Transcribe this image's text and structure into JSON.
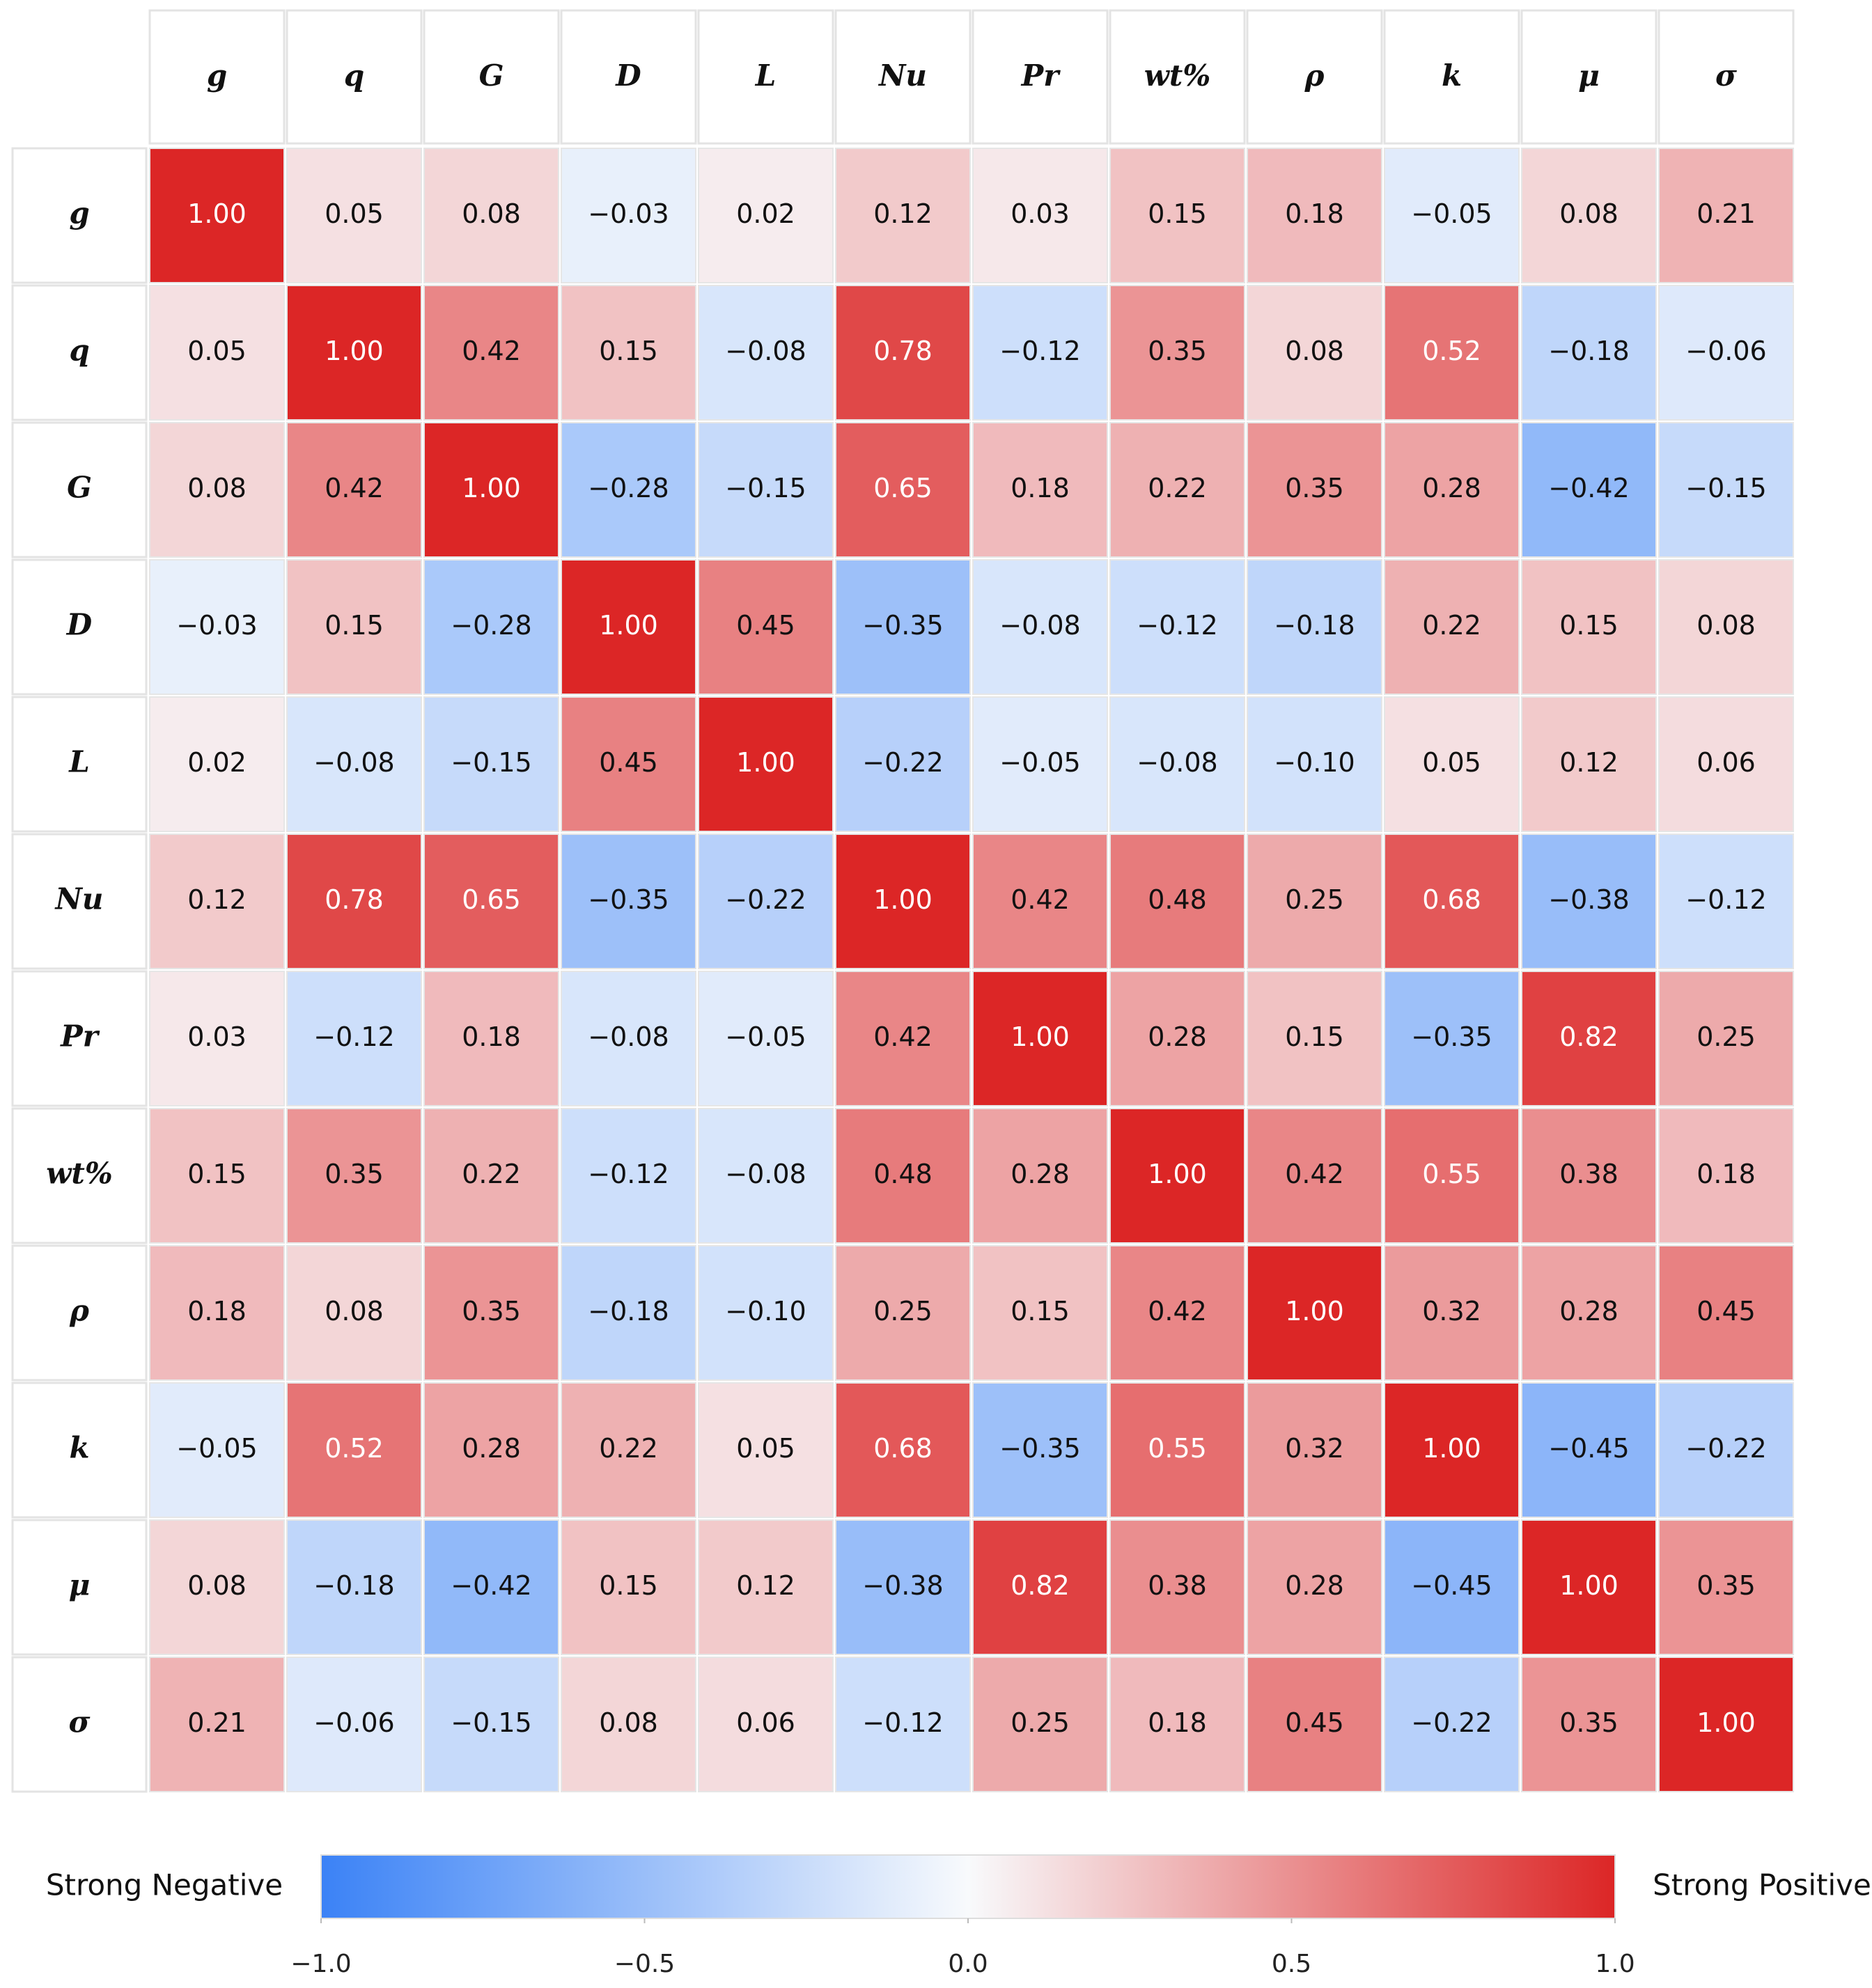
{
  "chart_data": {
    "type": "heatmap",
    "categories": [
      "g",
      "q",
      "G",
      "D",
      "L",
      "Nu",
      "Pr",
      "wt%",
      "ρ",
      "k",
      "μ",
      "σ"
    ],
    "values": [
      [
        1.0,
        0.05,
        0.08,
        -0.03,
        0.02,
        0.12,
        0.03,
        0.15,
        0.18,
        -0.05,
        0.08,
        0.21
      ],
      [
        0.05,
        1.0,
        0.42,
        0.15,
        -0.08,
        0.78,
        -0.12,
        0.35,
        0.08,
        0.52,
        -0.18,
        -0.06
      ],
      [
        0.08,
        0.42,
        1.0,
        -0.28,
        -0.15,
        0.65,
        0.18,
        0.22,
        0.35,
        0.28,
        -0.42,
        -0.15
      ],
      [
        -0.03,
        0.15,
        -0.28,
        1.0,
        0.45,
        -0.35,
        -0.08,
        -0.12,
        -0.18,
        0.22,
        0.15,
        0.08
      ],
      [
        0.02,
        -0.08,
        -0.15,
        0.45,
        1.0,
        -0.22,
        -0.05,
        -0.08,
        -0.1,
        0.05,
        0.12,
        0.06
      ],
      [
        0.12,
        0.78,
        0.65,
        -0.35,
        -0.22,
        1.0,
        0.42,
        0.48,
        0.25,
        0.68,
        -0.38,
        -0.12
      ],
      [
        0.03,
        -0.12,
        0.18,
        -0.08,
        -0.05,
        0.42,
        1.0,
        0.28,
        0.15,
        -0.35,
        0.82,
        0.25
      ],
      [
        0.15,
        0.35,
        0.22,
        -0.12,
        -0.08,
        0.48,
        0.28,
        1.0,
        0.42,
        0.55,
        0.38,
        0.18
      ],
      [
        0.18,
        0.08,
        0.35,
        -0.18,
        -0.1,
        0.25,
        0.15,
        0.42,
        1.0,
        0.32,
        0.28,
        0.45
      ],
      [
        -0.05,
        0.52,
        0.28,
        0.22,
        0.05,
        0.68,
        -0.35,
        0.55,
        0.32,
        1.0,
        -0.45,
        -0.22
      ],
      [
        0.08,
        -0.18,
        -0.42,
        0.15,
        0.12,
        -0.38,
        0.82,
        0.38,
        0.28,
        -0.45,
        1.0,
        0.35
      ],
      [
        0.21,
        -0.06,
        -0.15,
        0.08,
        0.06,
        -0.12,
        0.25,
        0.18,
        0.45,
        -0.22,
        0.35,
        1.0
      ]
    ],
    "value_labels": [
      [
        "1.00",
        "0.05",
        "0.08",
        "−0.03",
        "0.02",
        "0.12",
        "0.03",
        "0.15",
        "0.18",
        "−0.05",
        "0.08",
        "0.21"
      ],
      [
        "0.05",
        "1.00",
        "0.42",
        "0.15",
        "−0.08",
        "0.78",
        "−0.12",
        "0.35",
        "0.08",
        "0.52",
        "−0.18",
        "−0.06"
      ],
      [
        "0.08",
        "0.42",
        "1.00",
        "−0.28",
        "−0.15",
        "0.65",
        "0.18",
        "0.22",
        "0.35",
        "0.28",
        "−0.42",
        "−0.15"
      ],
      [
        "−0.03",
        "0.15",
        "−0.28",
        "1.00",
        "0.45",
        "−0.35",
        "−0.08",
        "−0.12",
        "−0.18",
        "0.22",
        "0.15",
        "0.08"
      ],
      [
        "0.02",
        "−0.08",
        "−0.15",
        "0.45",
        "1.00",
        "−0.22",
        "−0.05",
        "−0.08",
        "−0.10",
        "0.05",
        "0.12",
        "0.06"
      ],
      [
        "0.12",
        "0.78",
        "0.65",
        "−0.35",
        "−0.22",
        "1.00",
        "0.42",
        "0.48",
        "0.25",
        "0.68",
        "−0.38",
        "−0.12"
      ],
      [
        "0.03",
        "−0.12",
        "0.18",
        "−0.08",
        "−0.05",
        "0.42",
        "1.00",
        "0.28",
        "0.15",
        "−0.35",
        "0.82",
        "0.25"
      ],
      [
        "0.15",
        "0.35",
        "0.22",
        "−0.12",
        "−0.08",
        "0.48",
        "0.28",
        "1.00",
        "0.42",
        "0.55",
        "0.38",
        "0.18"
      ],
      [
        "0.18",
        "0.08",
        "0.35",
        "−0.18",
        "−0.10",
        "0.25",
        "0.15",
        "0.42",
        "1.00",
        "0.32",
        "0.28",
        "0.45"
      ],
      [
        "−0.05",
        "0.52",
        "0.28",
        "0.22",
        "0.05",
        "0.68",
        "−0.35",
        "0.55",
        "0.32",
        "1.00",
        "−0.45",
        "−0.22"
      ],
      [
        "0.08",
        "−0.18",
        "−0.42",
        "0.15",
        "0.12",
        "−0.38",
        "0.82",
        "0.38",
        "0.28",
        "−0.45",
        "1.00",
        "0.35"
      ],
      [
        "0.21",
        "−0.06",
        "−0.15",
        "0.08",
        "0.06",
        "−0.12",
        "0.25",
        "0.18",
        "0.45",
        "−0.22",
        "0.35",
        "1.00"
      ]
    ],
    "colors": [
      "#3b82f6",
      "#f8fafc",
      "#dc2626"
    ],
    "clim": [
      -1,
      1
    ],
    "colorbar_ticks": [
      {
        "value": -1,
        "label": "−1.0"
      },
      {
        "value": -0.5,
        "label": "−0.5"
      },
      {
        "value": 0,
        "label": "0.0"
      },
      {
        "value": 0.5,
        "label": "0.5"
      },
      {
        "value": 1,
        "label": "1.0"
      }
    ],
    "colorbar_left_label": "Strong Negative",
    "colorbar_right_label": "Strong Positive"
  }
}
